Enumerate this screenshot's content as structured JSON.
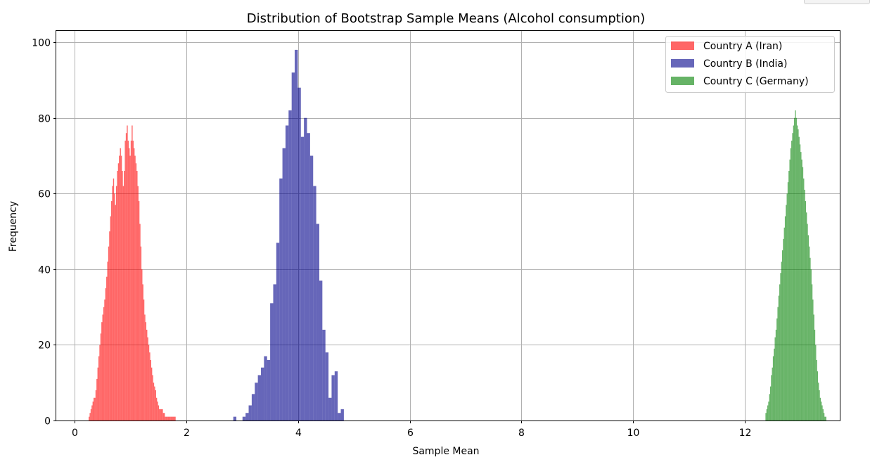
{
  "chart_data": {
    "type": "histogram",
    "title": "Distribution of Bootstrap Sample Means (Alcohol consumption)",
    "xlabel": "Sample Mean",
    "ylabel": "Frequency",
    "xlim": [
      -0.33,
      13.7
    ],
    "ylim": [
      0,
      103
    ],
    "xticks": [
      0,
      2,
      4,
      6,
      8,
      10,
      12
    ],
    "yticks": [
      0,
      20,
      40,
      60,
      80,
      100
    ],
    "grid": true,
    "legend_position": "top-right",
    "series": [
      {
        "name": "Country A (Iran)",
        "color": "#ff0000",
        "alpha": 0.6,
        "bin_start": 0.25,
        "bin_width": 0.0175,
        "counts": [
          1,
          2,
          3,
          4,
          5,
          6,
          6,
          8,
          11,
          14,
          17,
          20,
          23,
          26,
          28,
          30,
          32,
          35,
          38,
          42,
          46,
          50,
          54,
          58,
          62,
          64,
          60,
          57,
          62,
          66,
          68,
          70,
          72,
          70,
          66,
          62,
          66,
          74,
          76,
          78,
          74,
          72,
          70,
          74,
          78,
          74,
          72,
          70,
          68,
          66,
          62,
          58,
          52,
          46,
          40,
          36,
          32,
          28,
          26,
          24,
          22,
          20,
          18,
          16,
          14,
          12,
          10,
          9,
          8,
          6,
          5,
          4,
          3,
          3,
          3,
          3,
          2,
          2,
          1,
          1,
          1,
          1,
          1,
          1,
          1,
          1,
          1,
          1,
          1
        ]
      },
      {
        "name": "Country B (India)",
        "color": "#00008b",
        "alpha": 0.6,
        "bin_start": 2.84,
        "bin_width": 0.055,
        "counts": [
          1,
          0,
          0,
          1,
          2,
          4,
          7,
          10,
          12,
          14,
          17,
          16,
          31,
          36,
          47,
          64,
          72,
          78,
          82,
          92,
          98,
          88,
          75,
          80,
          76,
          70,
          62,
          52,
          37,
          24,
          18,
          6,
          12,
          13,
          2,
          3
        ]
      },
      {
        "name": "Country C (Germany)",
        "color": "#008000",
        "alpha": 0.6,
        "bin_start": 12.37,
        "bin_width": 0.0165,
        "counts": [
          2,
          3,
          4,
          5,
          7,
          9,
          12,
          14,
          17,
          19,
          22,
          24,
          27,
          30,
          33,
          36,
          39,
          42,
          45,
          48,
          51,
          54,
          57,
          60,
          63,
          66,
          69,
          72,
          74,
          76,
          78,
          80,
          82,
          80,
          78,
          77,
          75,
          73,
          71,
          69,
          67,
          64,
          61,
          58,
          55,
          52,
          49,
          46,
          43,
          40,
          36,
          32,
          28,
          24,
          20,
          16,
          13,
          10,
          8,
          6,
          5,
          4,
          3,
          2,
          1,
          1
        ]
      }
    ]
  }
}
